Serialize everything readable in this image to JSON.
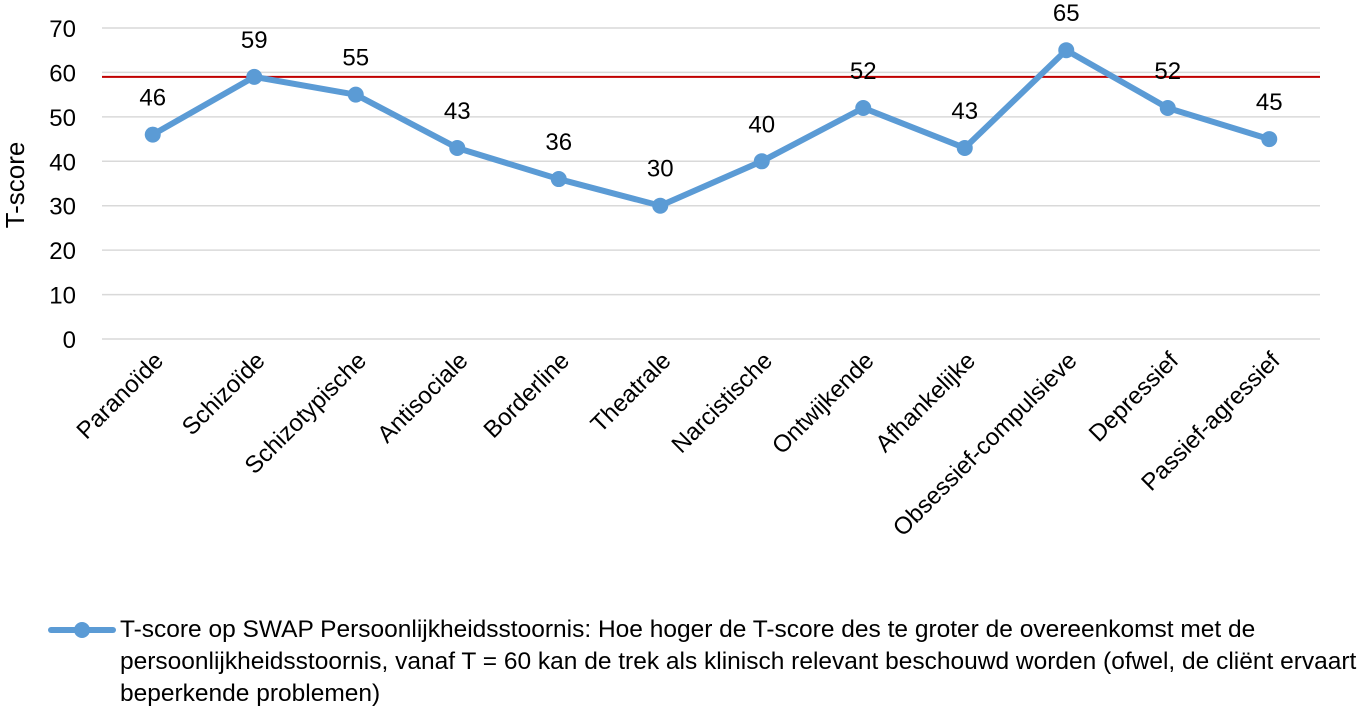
{
  "chart_data": {
    "type": "line",
    "categories": [
      "Paranoïde",
      "Schizoïde",
      "Schizotypische",
      "Antisociale",
      "Borderline",
      "Theatrale",
      "Narcistische",
      "Ontwijkende",
      "Afhankelijke",
      "Obsessief-compulsieve",
      "Depressief",
      "Passief-agressief"
    ],
    "series": [
      {
        "name": "T-score op SWAP Persoonlijkheidsstoornis: Hoe hoger de T-score des te groter de overeenkomst met de persoonlijkheidsstoornis, vanaf T = 60 kan de trek als klinisch relevant beschouwd worden (ofwel, de cliënt ervaart beperkende problemen)",
        "values": [
          46,
          59,
          55,
          43,
          36,
          30,
          40,
          52,
          43,
          65,
          52,
          45
        ],
        "color": "#5b9bd5"
      }
    ],
    "reference_line": {
      "value": 59,
      "color": "#c00000"
    },
    "y_ticks": [
      0,
      10,
      20,
      30,
      40,
      50,
      60,
      70
    ],
    "ylabel": "T-score",
    "xlabel": "",
    "title": "",
    "ylim": [
      0,
      70
    ],
    "grid": true,
    "gridline_color": "#d9d9d9",
    "legend_position": "bottom"
  }
}
